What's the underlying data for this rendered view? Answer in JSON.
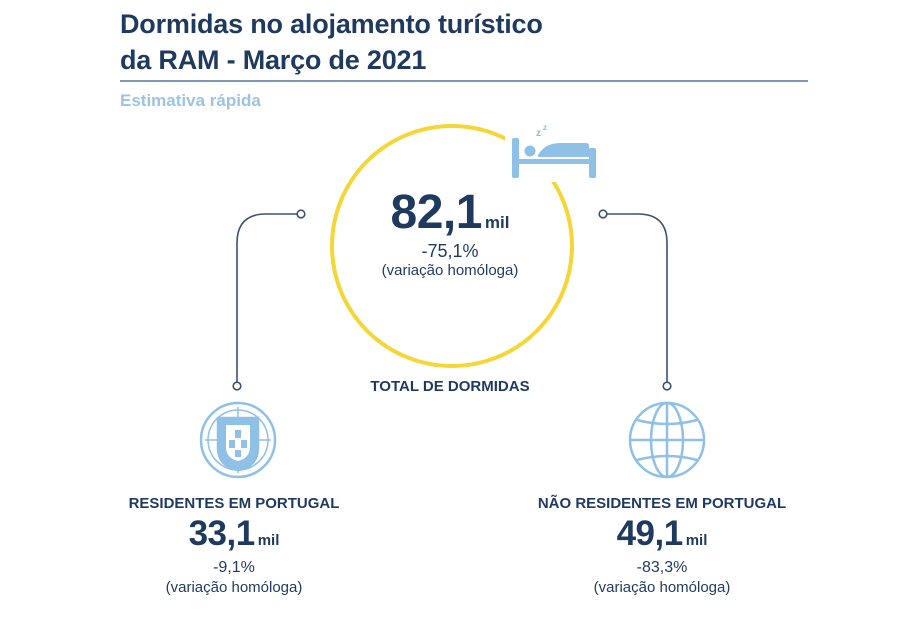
{
  "header": {
    "title_line1": "Dormidas no alojamento turístico",
    "title_line2": "da RAM - Março de 2021",
    "subtitle": "Estimativa rápida"
  },
  "total": {
    "value": "82,1",
    "unit": "mil",
    "change": "-75,1%",
    "change_note": "(variação homóloga)",
    "label": "TOTAL DE DORMIDAS"
  },
  "residents": {
    "label": "RESIDENTES EM PORTUGAL",
    "value": "33,1",
    "unit": "mil",
    "change": "-9,1%",
    "change_note": "(variação homóloga)"
  },
  "non_residents": {
    "label": "NÃO RESIDENTES EM PORTUGAL",
    "value": "49,1",
    "unit": "mil",
    "change": "-83,3%",
    "change_note": "(variação homóloga)"
  },
  "icons": {
    "center": "bed-sleeping-icon",
    "left": "portugal-coat-of-arms-icon",
    "right": "globe-icon"
  },
  "colors": {
    "title": "#1f3a5f",
    "subtitle": "#9ec3df",
    "circle": "#f4d637",
    "icon": "#8fc0e6",
    "connector": "#3a5270"
  }
}
